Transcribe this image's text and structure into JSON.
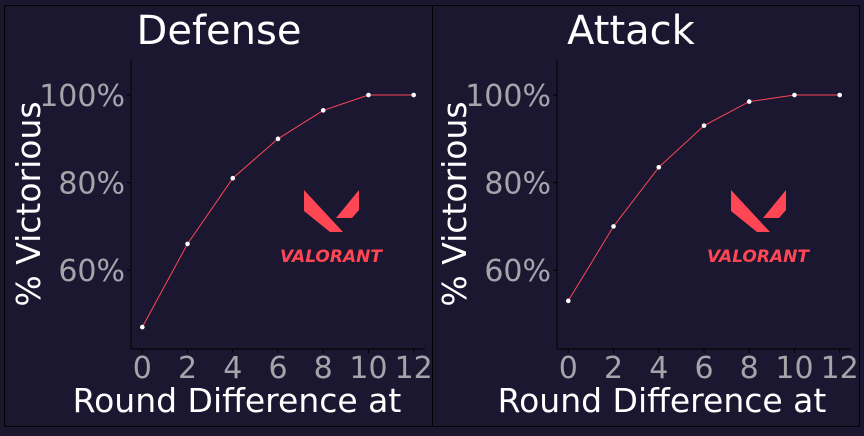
{
  "panels": [
    {
      "title": "Defense",
      "xlabel": "Round Difference at",
      "ylabel": "% Victorious",
      "logo_text": "VALORANT"
    },
    {
      "title": "Attack",
      "xlabel": "Round Difference at",
      "ylabel": "% Victorious",
      "logo_text": "VALORANT"
    }
  ],
  "colors": {
    "background": "#1b1731",
    "line": "#ff4655",
    "point": "#ffffff",
    "tick_text": "#a4a4ab",
    "title_text": "#ffffff",
    "logo": "#ff4655"
  },
  "chart_data": [
    {
      "type": "line",
      "title": "Defense",
      "xlabel": "Round Difference at",
      "ylabel": "% Victorious",
      "x": [
        0,
        2,
        4,
        6,
        8,
        10,
        12
      ],
      "y": [
        47,
        66,
        81,
        90,
        96.5,
        100,
        100
      ],
      "xticks": [
        "0",
        "2",
        "4",
        "6",
        "8",
        "10",
        "12"
      ],
      "yticks": [
        "60%",
        "80%",
        "100%"
      ],
      "ytick_values": [
        60,
        80,
        100
      ],
      "xlim": [
        -0.5,
        12.5
      ],
      "ylim": [
        42,
        108
      ],
      "grid": false
    },
    {
      "type": "line",
      "title": "Attack",
      "xlabel": "Round Difference at",
      "ylabel": "% Victorious",
      "x": [
        0,
        2,
        4,
        6,
        8,
        10,
        12
      ],
      "y": [
        53,
        70,
        83.5,
        93,
        98.5,
        100,
        100
      ],
      "xticks": [
        "0",
        "2",
        "4",
        "6",
        "8",
        "10",
        "12"
      ],
      "yticks": [
        "60%",
        "80%",
        "100%"
      ],
      "ytick_values": [
        60,
        80,
        100
      ],
      "xlim": [
        -0.5,
        12.5
      ],
      "ylim": [
        42,
        108
      ],
      "grid": false
    }
  ]
}
